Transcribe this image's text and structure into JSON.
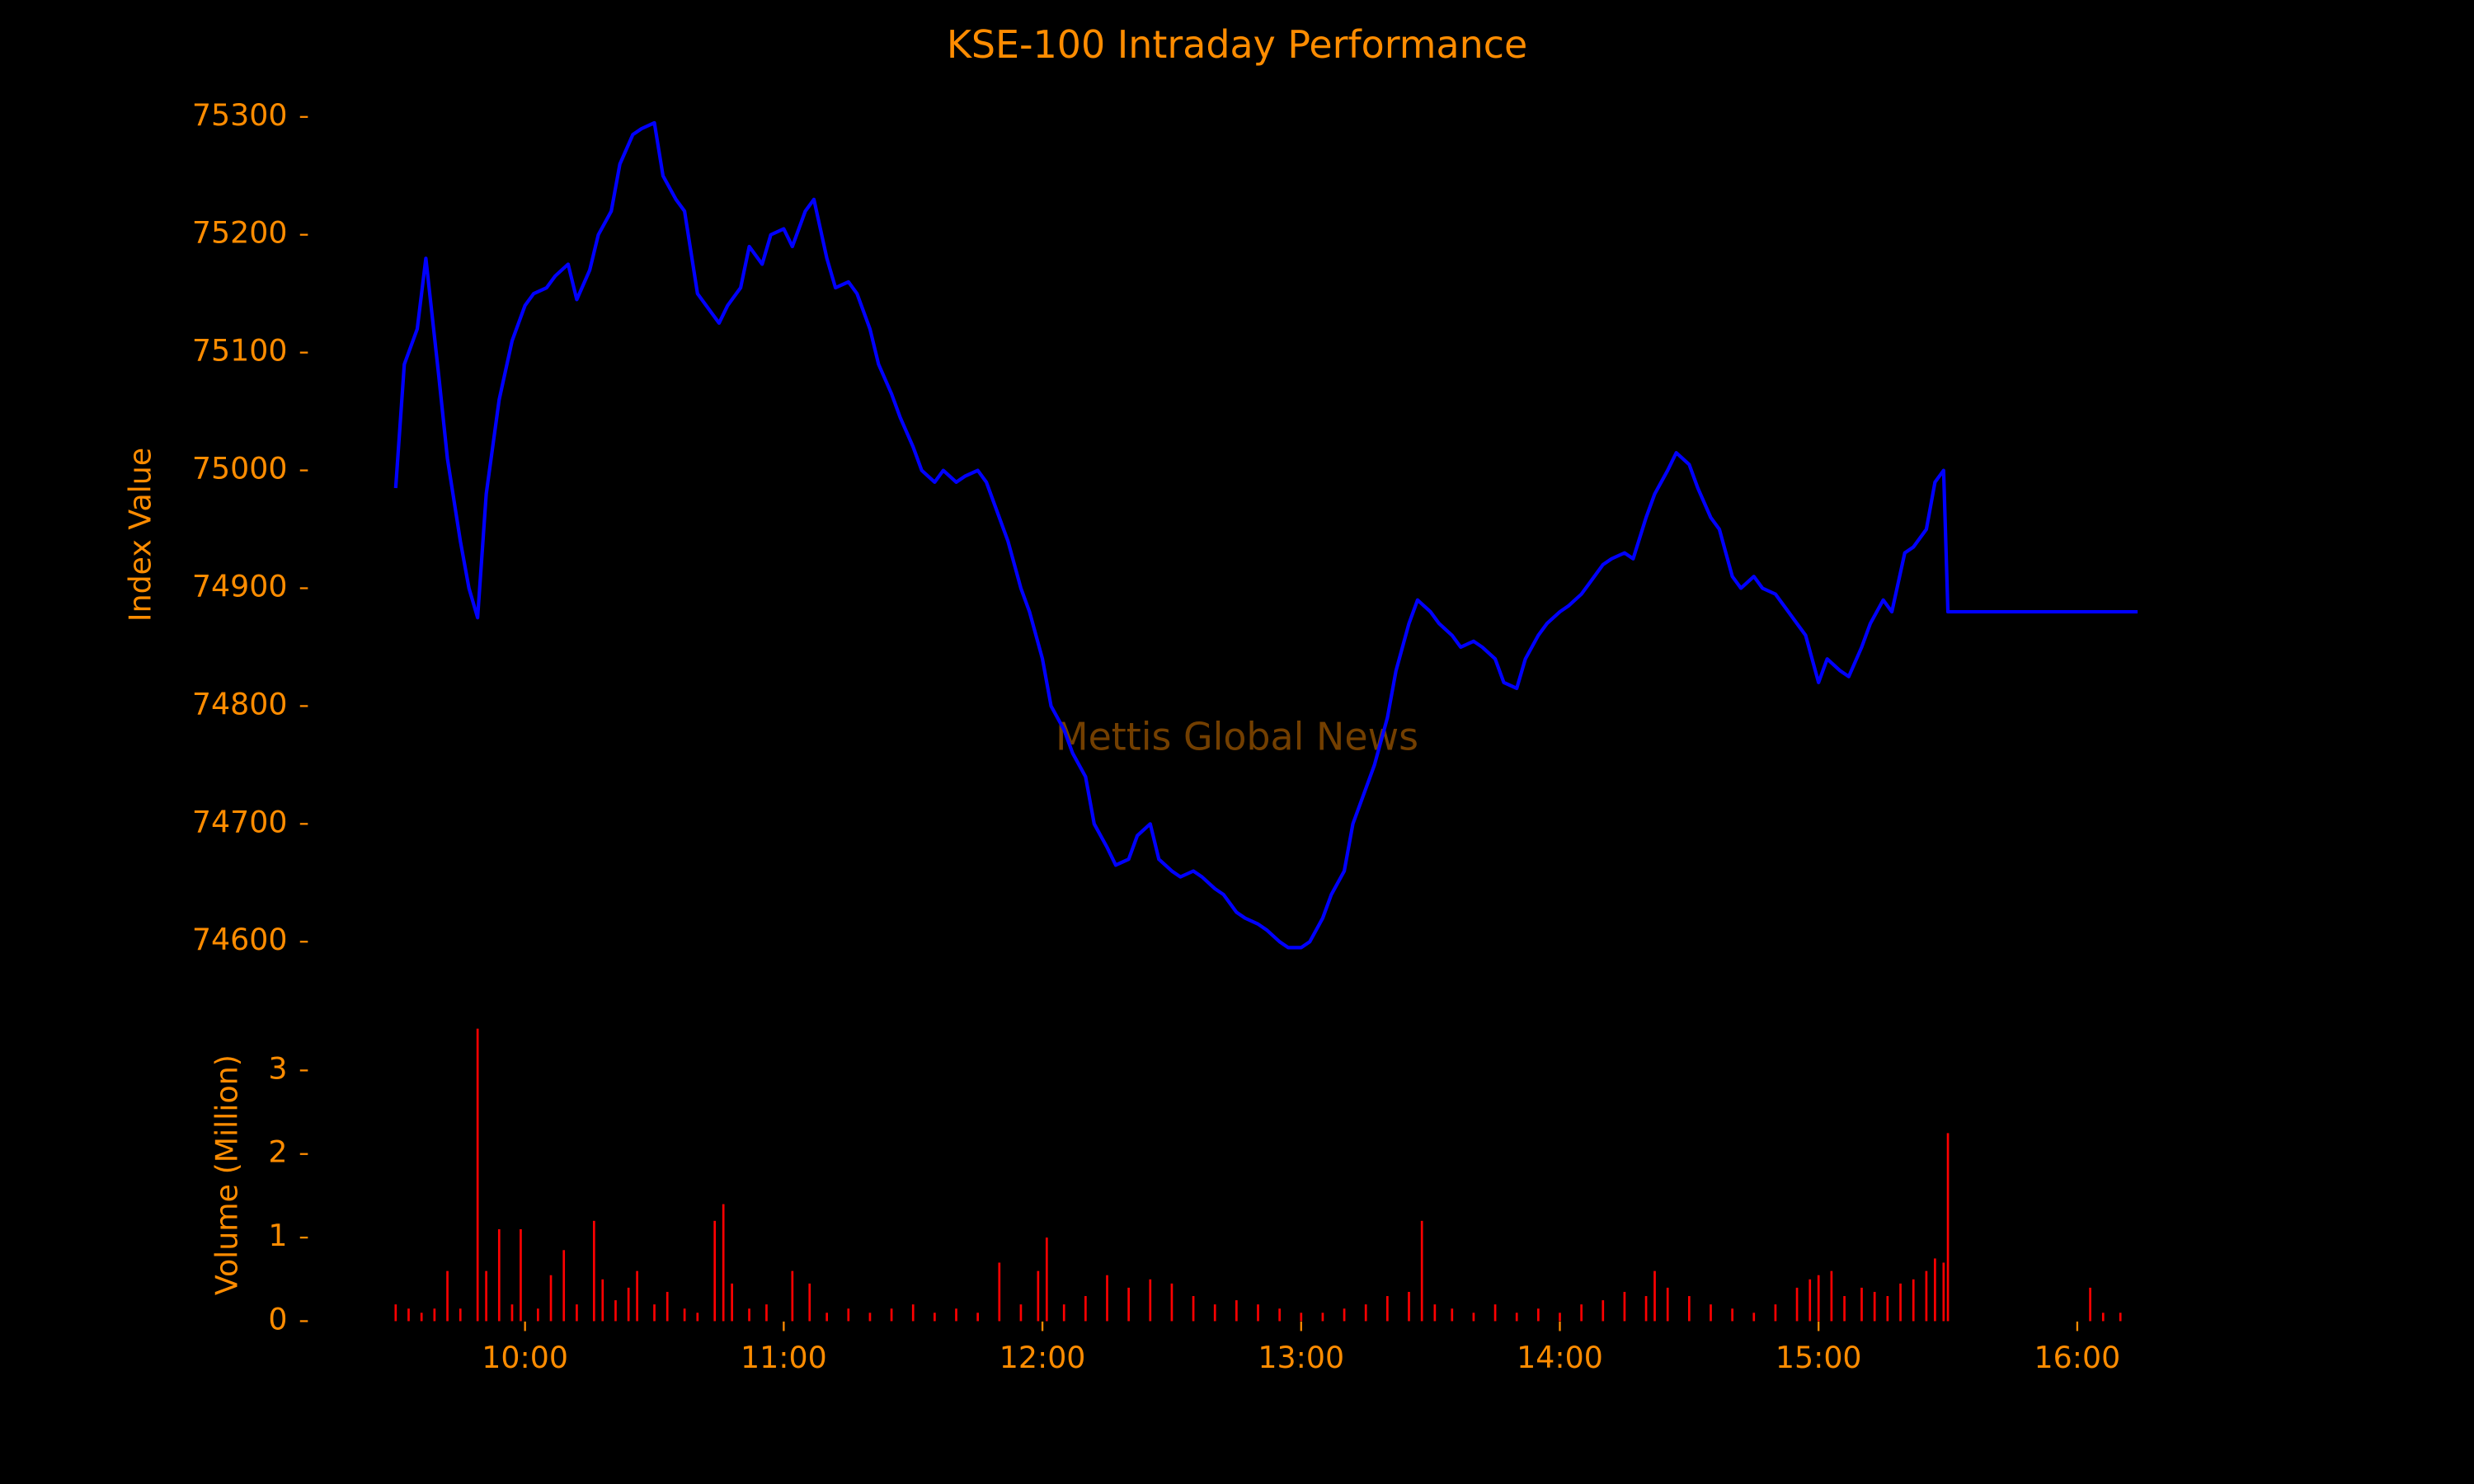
{
  "chart_data": [
    {
      "type": "line",
      "title": "KSE-100 Intraday Performance",
      "ylabel": "Index Value",
      "annotation": "Mettis Global News",
      "xlim": [
        "09:10",
        "16:34"
      ],
      "ylim": [
        74552,
        75339
      ],
      "yticks": [
        74600,
        74700,
        74800,
        74900,
        75000,
        75100,
        75200,
        75300
      ],
      "series": [
        {
          "name": "KSE-100",
          "color": "#0000ff",
          "x": [
            "09:30",
            "09:32",
            "09:35",
            "09:37",
            "09:40",
            "09:42",
            "09:45",
            "09:47",
            "09:49",
            "09:51",
            "09:54",
            "09:57",
            "10:00",
            "10:02",
            "10:05",
            "10:07",
            "10:10",
            "10:12",
            "10:15",
            "10:17",
            "10:20",
            "10:22",
            "10:25",
            "10:27",
            "10:30",
            "10:32",
            "10:35",
            "10:37",
            "10:40",
            "10:42",
            "10:45",
            "10:47",
            "10:50",
            "10:52",
            "10:55",
            "10:57",
            "11:00",
            "11:02",
            "11:05",
            "11:07",
            "11:10",
            "11:12",
            "11:15",
            "11:17",
            "11:20",
            "11:22",
            "11:25",
            "11:27",
            "11:30",
            "11:32",
            "11:35",
            "11:37",
            "11:40",
            "11:42",
            "11:45",
            "11:47",
            "11:50",
            "11:52",
            "11:55",
            "11:57",
            "12:00",
            "12:02",
            "12:05",
            "12:07",
            "12:10",
            "12:12",
            "12:15",
            "12:17",
            "12:20",
            "12:22",
            "12:25",
            "12:27",
            "12:30",
            "12:32",
            "12:35",
            "12:37",
            "12:40",
            "12:42",
            "12:45",
            "12:47",
            "12:50",
            "12:52",
            "12:55",
            "12:57",
            "13:00",
            "13:02",
            "13:05",
            "13:07",
            "13:10",
            "13:12",
            "13:15",
            "13:17",
            "13:20",
            "13:22",
            "13:25",
            "13:27",
            "13:30",
            "13:32",
            "13:35",
            "13:37",
            "13:40",
            "13:42",
            "13:45",
            "13:47",
            "13:50",
            "13:52",
            "13:55",
            "13:57",
            "14:00",
            "14:02",
            "14:05",
            "14:07",
            "14:10",
            "14:12",
            "14:15",
            "14:17",
            "14:20",
            "14:22",
            "14:25",
            "14:27",
            "14:30",
            "14:32",
            "14:35",
            "14:37",
            "14:40",
            "14:42",
            "14:45",
            "14:47",
            "14:50",
            "14:52",
            "14:55",
            "14:57",
            "15:00",
            "15:02",
            "15:05",
            "15:07",
            "15:10",
            "15:12",
            "15:15",
            "15:17",
            "15:20",
            "15:22",
            "15:25",
            "15:27",
            "15:29",
            "15:30",
            "16:14"
          ],
          "values": [
            74985,
            75090,
            75120,
            75180,
            75080,
            75010,
            74940,
            74900,
            74875,
            74980,
            75060,
            75110,
            75140,
            75150,
            75155,
            75165,
            75175,
            75145,
            75170,
            75200,
            75220,
            75260,
            75285,
            75290,
            75295,
            75250,
            75230,
            75220,
            75150,
            75140,
            75125,
            75140,
            75155,
            75190,
            75175,
            75200,
            75205,
            75190,
            75220,
            75230,
            75180,
            75155,
            75160,
            75150,
            75120,
            75090,
            75065,
            75045,
            75020,
            75000,
            74990,
            75000,
            74990,
            74995,
            75000,
            74990,
            74960,
            74940,
            74900,
            74880,
            74840,
            74800,
            74780,
            74760,
            74740,
            74700,
            74680,
            74665,
            74670,
            74690,
            74700,
            74670,
            74660,
            74655,
            74660,
            74655,
            74645,
            74640,
            74625,
            74620,
            74615,
            74610,
            74600,
            74595,
            74595,
            74600,
            74620,
            74640,
            74660,
            74700,
            74730,
            74750,
            74790,
            74830,
            74870,
            74890,
            74880,
            74870,
            74860,
            74850,
            74855,
            74850,
            74840,
            74820,
            74815,
            74840,
            74860,
            74870,
            74880,
            74885,
            74895,
            74905,
            74920,
            74925,
            74930,
            74925,
            74960,
            74980,
            75000,
            75015,
            75005,
            74985,
            74960,
            74950,
            74910,
            74900,
            74910,
            74900,
            74895,
            74885,
            74870,
            74860,
            74820,
            74840,
            74830,
            74825,
            74850,
            74870,
            74890,
            74880,
            74930,
            74935,
            74950,
            74990,
            75000,
            74880,
            74880
          ]
        }
      ]
    },
    {
      "type": "bar",
      "ylabel": "Volume (Million)",
      "xlim": [
        "09:10",
        "16:34"
      ],
      "ylim": [
        -0.175,
        3.675
      ],
      "yticks": [
        0,
        1,
        2,
        3
      ],
      "xticks": [
        "10:00",
        "11:00",
        "12:00",
        "13:00",
        "14:00",
        "15:00",
        "16:00"
      ],
      "series": [
        {
          "name": "Volume",
          "color": "#ff0000",
          "x": [
            "09:30",
            "09:33",
            "09:36",
            "09:39",
            "09:42",
            "09:45",
            "09:49",
            "09:51",
            "09:54",
            "09:57",
            "09:59",
            "10:03",
            "10:06",
            "10:09",
            "10:12",
            "10:16",
            "10:18",
            "10:21",
            "10:24",
            "10:26",
            "10:30",
            "10:33",
            "10:37",
            "10:40",
            "10:44",
            "10:46",
            "10:48",
            "10:52",
            "10:56",
            "11:02",
            "11:06",
            "11:10",
            "11:15",
            "11:20",
            "11:25",
            "11:30",
            "11:35",
            "11:40",
            "11:45",
            "11:50",
            "11:55",
            "11:59",
            "12:01",
            "12:05",
            "12:10",
            "12:15",
            "12:20",
            "12:25",
            "12:30",
            "12:35",
            "12:40",
            "12:45",
            "12:50",
            "12:55",
            "13:00",
            "13:05",
            "13:10",
            "13:15",
            "13:20",
            "13:25",
            "13:28",
            "13:31",
            "13:35",
            "13:40",
            "13:45",
            "13:50",
            "13:55",
            "14:00",
            "14:05",
            "14:10",
            "14:15",
            "14:20",
            "14:22",
            "14:25",
            "14:30",
            "14:35",
            "14:40",
            "14:45",
            "14:50",
            "14:55",
            "14:58",
            "15:00",
            "15:03",
            "15:06",
            "15:10",
            "15:13",
            "15:16",
            "15:19",
            "15:22",
            "15:25",
            "15:27",
            "15:29",
            "15:30",
            "16:03",
            "16:06",
            "16:10"
          ],
          "values": [
            0.2,
            0.15,
            0.1,
            0.15,
            0.6,
            0.15,
            3.5,
            0.6,
            1.1,
            0.2,
            1.1,
            0.15,
            0.55,
            0.85,
            0.2,
            1.2,
            0.5,
            0.25,
            0.4,
            0.6,
            0.2,
            0.35,
            0.15,
            0.1,
            1.2,
            1.4,
            0.45,
            0.15,
            0.2,
            0.6,
            0.45,
            0.1,
            0.15,
            0.1,
            0.15,
            0.2,
            0.1,
            0.15,
            0.1,
            0.7,
            0.2,
            0.6,
            1.0,
            0.2,
            0.3,
            0.55,
            0.4,
            0.5,
            0.45,
            0.3,
            0.2,
            0.25,
            0.2,
            0.15,
            0.1,
            0.1,
            0.15,
            0.2,
            0.3,
            0.35,
            1.2,
            0.2,
            0.15,
            0.1,
            0.2,
            0.1,
            0.15,
            0.1,
            0.2,
            0.25,
            0.35,
            0.3,
            0.6,
            0.4,
            0.3,
            0.2,
            0.15,
            0.1,
            0.2,
            0.4,
            0.5,
            0.55,
            0.6,
            0.3,
            0.4,
            0.35,
            0.3,
            0.45,
            0.5,
            0.6,
            0.75,
            0.7,
            2.25,
            0.4,
            0.1,
            0.1
          ]
        }
      ]
    }
  ]
}
